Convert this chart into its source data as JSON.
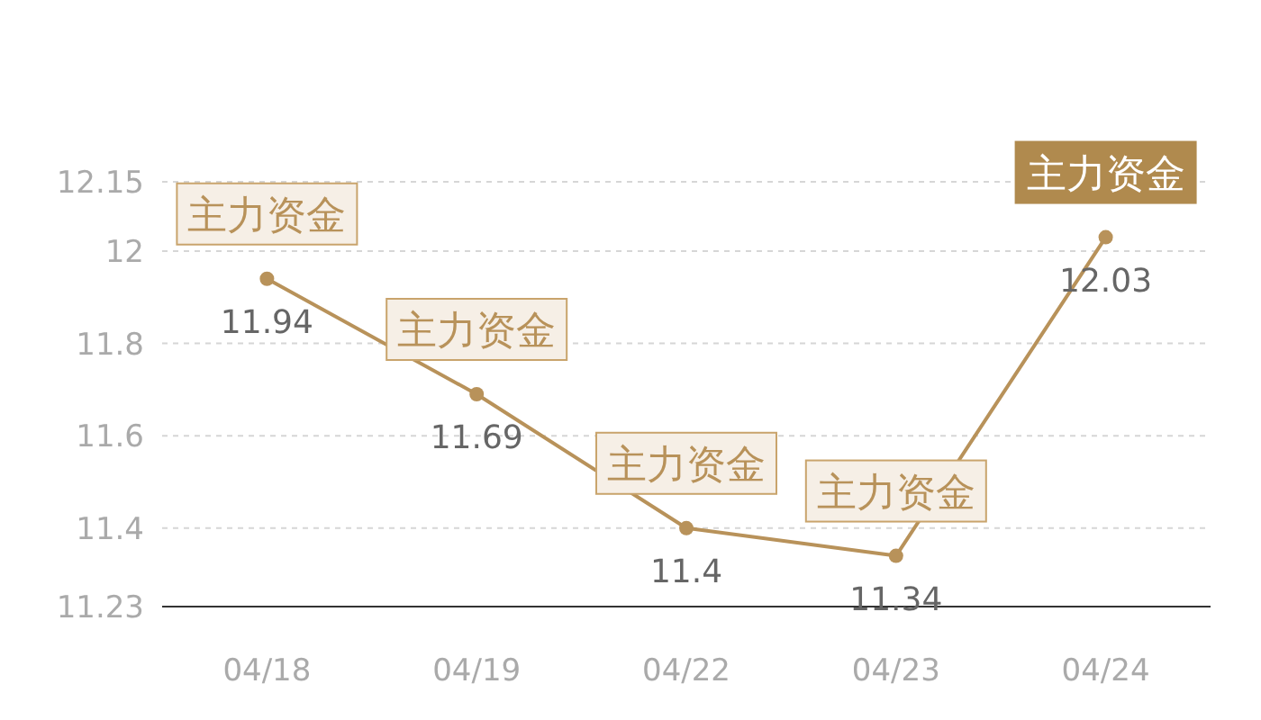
{
  "chart_data": {
    "type": "line",
    "categories": [
      "04/18",
      "04/19",
      "04/22",
      "04/23",
      "04/24"
    ],
    "series": [
      {
        "color": "#b8925a",
        "values": [
          11.94,
          11.69,
          11.4,
          11.34,
          12.03
        ]
      }
    ],
    "ylim": [
      11.23,
      12.15
    ],
    "yticks": [
      11.23,
      11.4,
      11.6,
      11.8,
      12,
      12.15
    ],
    "grid": "y",
    "marker": "circle",
    "data_labels": true,
    "annotations": [
      {
        "text": "主力资金",
        "x": "04/18",
        "y": 11.94
      },
      {
        "text": "主力资金",
        "x": "04/19",
        "y": 11.69
      },
      {
        "text": "主力资金",
        "x": "04/22",
        "y": 11.4
      },
      {
        "text": "主力资金",
        "x": "04/23",
        "y": 11.34
      },
      {
        "text": "主力资金",
        "x": "04/24",
        "y": 12.03
      }
    ]
  }
}
